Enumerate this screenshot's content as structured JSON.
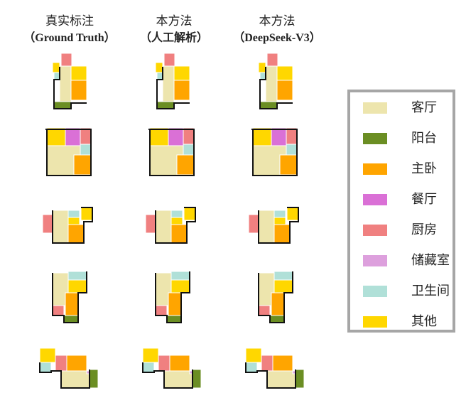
{
  "columns": [
    {
      "line1": "真实标注",
      "line2": "（Ground Truth）"
    },
    {
      "line1": "本方法",
      "line2": "（人工解析）"
    },
    {
      "line1": "本方法",
      "line2": "（DeepSeek-V3）"
    }
  ],
  "legend": [
    {
      "label": "客厅",
      "color": "#ede5ad"
    },
    {
      "label": "阳台",
      "color": "#6b8e23"
    },
    {
      "label": "主卧",
      "color": "#ffa500"
    },
    {
      "label": "餐厅",
      "color": "#da70d6"
    },
    {
      "label": "厨房",
      "color": "#f08080"
    },
    {
      "label": "储藏室",
      "color": "#dda0dd"
    },
    {
      "label": "卫生间",
      "color": "#b0e0d8"
    },
    {
      "label": "其他",
      "color": "#ffd700"
    }
  ]
}
